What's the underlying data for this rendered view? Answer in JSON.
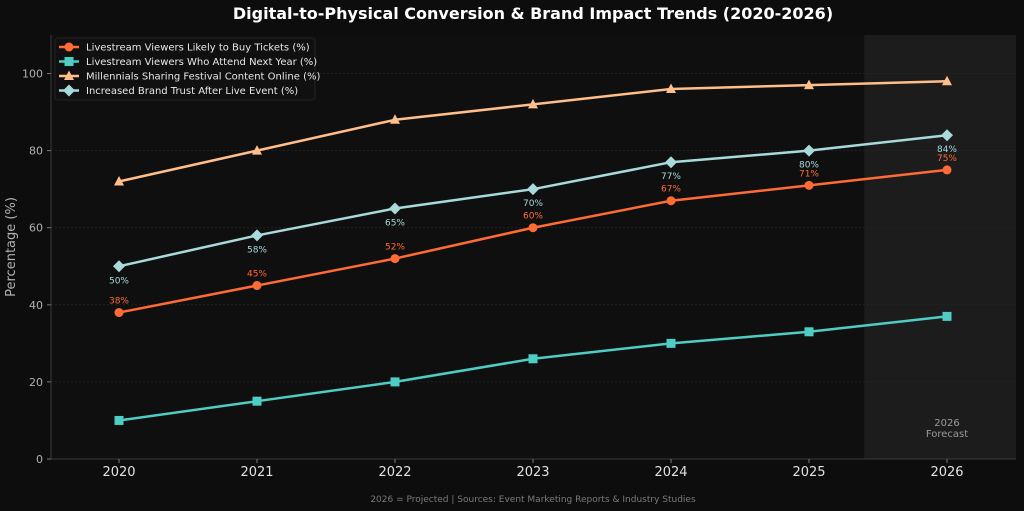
{
  "chart_data": {
    "type": "line",
    "title": "Digital-to-Physical Conversion & Brand Impact Trends (2020-2026)",
    "xlabel": "",
    "ylabel": "Percentage (%)",
    "x": [
      2020,
      2021,
      2022,
      2023,
      2024,
      2025,
      2026
    ],
    "ylim": [
      0,
      110
    ],
    "yticks": [
      0,
      20,
      40,
      60,
      80,
      100
    ],
    "grid": true,
    "legend_position": "top-left",
    "series": [
      {
        "name": "Livestream Viewers Likely to Buy Tickets (%)",
        "values": [
          38,
          45,
          52,
          60,
          67,
          71,
          75
        ],
        "color": "#ff6b35",
        "marker": "circle",
        "data_labels": [
          "38%",
          "45%",
          "52%",
          "60%",
          "67%",
          "71%",
          "75%"
        ],
        "label_position": "above"
      },
      {
        "name": "Livestream Viewers Who Attend Next Year (%)",
        "values": [
          10,
          15,
          20,
          26,
          30,
          33,
          37
        ],
        "color": "#4ecdc4",
        "marker": "square",
        "data_labels": null
      },
      {
        "name": "Millennials Sharing Festival Content Online (%)",
        "values": [
          72,
          80,
          88,
          92,
          96,
          97,
          98
        ],
        "color": "#ffbe8a",
        "marker": "triangle",
        "data_labels": null
      },
      {
        "name": "Increased Brand Trust After Live Event (%)",
        "values": [
          50,
          58,
          65,
          70,
          77,
          80,
          84
        ],
        "color": "#a8dadc",
        "marker": "diamond",
        "data_labels": [
          "50%",
          "58%",
          "65%",
          "70%",
          "77%",
          "80%",
          "84%"
        ],
        "label_position": "below"
      }
    ],
    "forecast_region": {
      "x": 2026,
      "label_line1": "2026",
      "label_line2": "Forecast"
    },
    "footnote": "2026 = Projected | Sources: Event Marketing Reports & Industry Studies"
  }
}
